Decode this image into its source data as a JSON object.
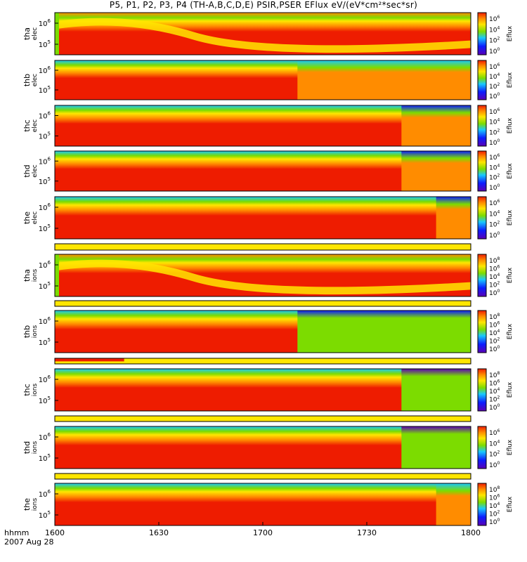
{
  "title": "P5, P1, P2, P3, P4 (TH-A,B,C,D,E) PSIR,PSER EFlux eV/(eV*cm²*sec*sr)",
  "xaxis": {
    "label_hhmm": "hhmm",
    "date_label": "2007 Aug 28",
    "ticks": [
      "1600",
      "1630",
      "1700",
      "1730",
      "1800"
    ],
    "tick_minutes": [
      0,
      30,
      60,
      90,
      120
    ]
  },
  "colors": {
    "red": "#ee1c00",
    "orange": "#ff8c00",
    "yellow": "#ffe600",
    "green": "#7cdc00",
    "cyan": "#19c8ff",
    "blue": "#0c1cff",
    "purple": "#5a00b4"
  },
  "chart_data": {
    "type": "heatmap",
    "x_range_minutes": [
      0,
      120
    ],
    "colorbar_label": "Eflux",
    "panels": [
      {
        "kind": "spec",
        "label1": "tha",
        "label2": "elec",
        "yticks": [
          {
            "base": "10",
            "exp": "6"
          },
          {
            "base": "10",
            "exp": "5"
          }
        ],
        "cbar": [
          {
            "base": "10",
            "exp": "6"
          },
          {
            "base": "10",
            "exp": "4"
          },
          {
            "base": "10",
            "exp": "2"
          },
          {
            "base": "10",
            "exp": "0"
          }
        ],
        "change_min": null,
        "top_after": "green",
        "body_after": "red",
        "top_before": "orange"
      },
      {
        "kind": "spec",
        "label1": "thb",
        "label2": "elec",
        "yticks": [
          {
            "base": "10",
            "exp": "6"
          },
          {
            "base": "10",
            "exp": "5"
          }
        ],
        "cbar": [
          {
            "base": "10",
            "exp": "6"
          },
          {
            "base": "10",
            "exp": "4"
          },
          {
            "base": "10",
            "exp": "2"
          },
          {
            "base": "10",
            "exp": "0"
          }
        ],
        "change_min": 70,
        "top_after": "cyan",
        "body_after": "orange",
        "top_before": "cyan"
      },
      {
        "kind": "spec",
        "label1": "thc",
        "label2": "elec",
        "yticks": [
          {
            "base": "10",
            "exp": "6"
          },
          {
            "base": "10",
            "exp": "5"
          }
        ],
        "cbar": [
          {
            "base": "10",
            "exp": "6"
          },
          {
            "base": "10",
            "exp": "4"
          },
          {
            "base": "10",
            "exp": "2"
          },
          {
            "base": "10",
            "exp": "0"
          }
        ],
        "change_min": 100,
        "top_after": "blue",
        "body_after": "orange",
        "top_before": "cyan"
      },
      {
        "kind": "spec",
        "label1": "thd",
        "label2": "elec",
        "yticks": [
          {
            "base": "10",
            "exp": "6"
          },
          {
            "base": "10",
            "exp": "5"
          }
        ],
        "cbar": [
          {
            "base": "10",
            "exp": "6"
          },
          {
            "base": "10",
            "exp": "4"
          },
          {
            "base": "10",
            "exp": "2"
          },
          {
            "base": "10",
            "exp": "0"
          }
        ],
        "change_min": 100,
        "top_after": "blue",
        "body_after": "orange",
        "top_before": "cyan"
      },
      {
        "kind": "spec",
        "label1": "the",
        "label2": "elec",
        "yticks": [
          {
            "base": "10",
            "exp": "6"
          },
          {
            "base": "10",
            "exp": "5"
          }
        ],
        "cbar": [
          {
            "base": "10",
            "exp": "6"
          },
          {
            "base": "10",
            "exp": "4"
          },
          {
            "base": "10",
            "exp": "2"
          },
          {
            "base": "10",
            "exp": "0"
          }
        ],
        "change_min": 110,
        "top_after": "blue",
        "body_after": "orange",
        "top_before": "cyan"
      },
      {
        "kind": "bar",
        "red_end_min": 0
      },
      {
        "kind": "spec",
        "label1": "tha",
        "label2": "ions",
        "yticks": [
          {
            "base": "10",
            "exp": "6"
          },
          {
            "base": "10",
            "exp": "5"
          }
        ],
        "cbar": [
          {
            "base": "10",
            "exp": "8"
          },
          {
            "base": "10",
            "exp": "6"
          },
          {
            "base": "10",
            "exp": "4"
          },
          {
            "base": "10",
            "exp": "2"
          },
          {
            "base": "10",
            "exp": "0"
          }
        ],
        "change_min": null,
        "top_after": "green",
        "body_after": "red",
        "top_before": "orange"
      },
      {
        "kind": "bar",
        "red_end_min": 0
      },
      {
        "kind": "spec",
        "label1": "thb",
        "label2": "ions",
        "yticks": [
          {
            "base": "10",
            "exp": "6"
          },
          {
            "base": "10",
            "exp": "5"
          }
        ],
        "cbar": [
          {
            "base": "10",
            "exp": "8"
          },
          {
            "base": "10",
            "exp": "6"
          },
          {
            "base": "10",
            "exp": "4"
          },
          {
            "base": "10",
            "exp": "2"
          },
          {
            "base": "10",
            "exp": "0"
          }
        ],
        "change_min": 70,
        "top_after": "blue",
        "body_after": "green",
        "top_before": "cyan"
      },
      {
        "kind": "bar",
        "red_end_min": 20
      },
      {
        "kind": "spec",
        "label1": "thc",
        "label2": "ions",
        "yticks": [
          {
            "base": "10",
            "exp": "6"
          },
          {
            "base": "10",
            "exp": "5"
          }
        ],
        "cbar": [
          {
            "base": "10",
            "exp": "8"
          },
          {
            "base": "10",
            "exp": "6"
          },
          {
            "base": "10",
            "exp": "4"
          },
          {
            "base": "10",
            "exp": "2"
          },
          {
            "base": "10",
            "exp": "0"
          }
        ],
        "change_min": 100,
        "top_after": "purple",
        "body_after": "green",
        "top_before": "cyan"
      },
      {
        "kind": "bar",
        "red_end_min": 0
      },
      {
        "kind": "spec",
        "label1": "thd",
        "label2": "ions",
        "yticks": [
          {
            "base": "10",
            "exp": "6"
          },
          {
            "base": "10",
            "exp": "5"
          }
        ],
        "cbar": [
          {
            "base": "10",
            "exp": "6"
          },
          {
            "base": "10",
            "exp": "4"
          },
          {
            "base": "10",
            "exp": "2"
          },
          {
            "base": "10",
            "exp": "0"
          }
        ],
        "change_min": 100,
        "top_after": "purple",
        "body_after": "green",
        "top_before": "cyan"
      },
      {
        "kind": "bar",
        "red_end_min": 0
      },
      {
        "kind": "spec",
        "label1": "the",
        "label2": "ions",
        "yticks": [
          {
            "base": "10",
            "exp": "6"
          },
          {
            "base": "10",
            "exp": "5"
          }
        ],
        "cbar": [
          {
            "base": "10",
            "exp": "8"
          },
          {
            "base": "10",
            "exp": "6"
          },
          {
            "base": "10",
            "exp": "4"
          },
          {
            "base": "10",
            "exp": "2"
          },
          {
            "base": "10",
            "exp": "0"
          }
        ],
        "change_min": 110,
        "top_after": "cyan",
        "body_after": "orange",
        "top_before": "cyan"
      }
    ]
  }
}
